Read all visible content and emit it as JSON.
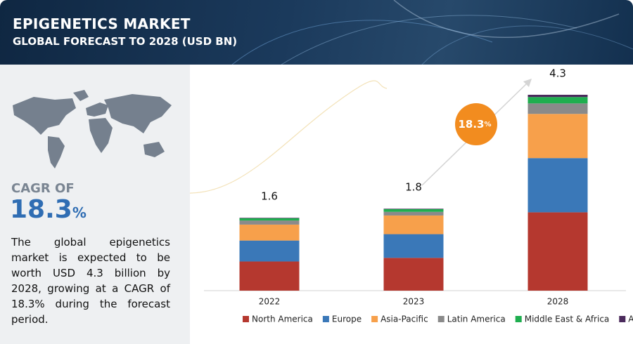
{
  "header": {
    "title": "EPIGENETICS MARKET",
    "subtitle": "GLOBAL FORECAST TO 2028 (USD BN)"
  },
  "panel": {
    "cagr_label": "CAGR OF",
    "cagr_number": "18.3",
    "cagr_unit": "%",
    "description": "The global epigenetics market is expected to be worth USD 4.3 billion by 2028, growing at a CAGR of 18.3% during the forecast period."
  },
  "chart_data": {
    "type": "stacked_bar",
    "categories": [
      "2022",
      "2023",
      "2028"
    ],
    "series": [
      {
        "name": "North America",
        "color": "#b5382f",
        "values": [
          0.64,
          0.72,
          1.72
        ]
      },
      {
        "name": "Europe",
        "color": "#3a78b8",
        "values": [
          0.46,
          0.52,
          1.19
        ]
      },
      {
        "name": "Asia-Pacific",
        "color": "#f7a04b",
        "values": [
          0.35,
          0.41,
          0.97
        ]
      },
      {
        "name": "Latin America",
        "color": "#8a8a8a",
        "values": [
          0.09,
          0.08,
          0.23
        ]
      },
      {
        "name": "Middle East & Africa",
        "color": "#1fae4f",
        "values": [
          0.05,
          0.06,
          0.14
        ]
      },
      {
        "name": "Africa",
        "color": "#4b2a5c",
        "values": [
          0.01,
          0.01,
          0.05
        ]
      }
    ],
    "totals": [
      1.6,
      1.8,
      4.3
    ],
    "annotation": {
      "number": "18.3",
      "unit": "%",
      "color": "#f28c1f"
    },
    "legend": "bottom"
  }
}
